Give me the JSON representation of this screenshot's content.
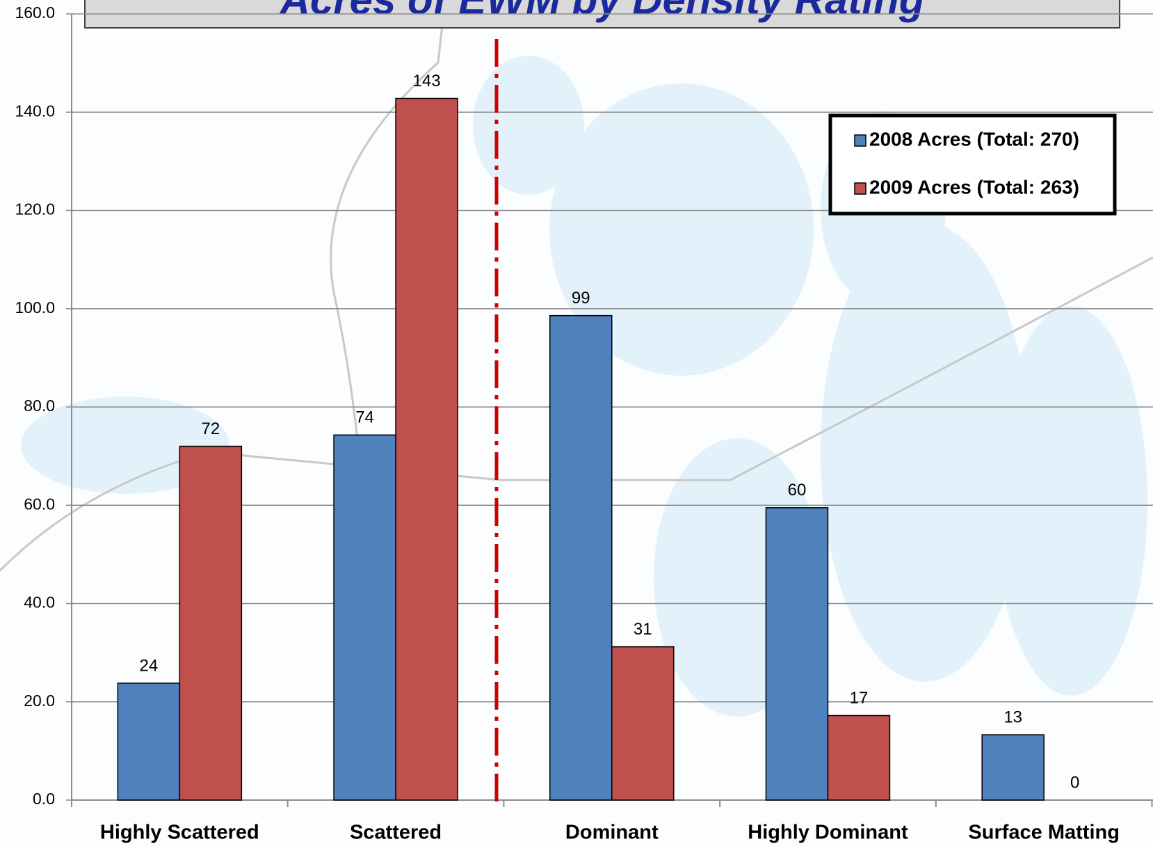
{
  "chart_data": {
    "type": "bar",
    "title": "Acres of EWM by Density Rating",
    "categories": [
      "Highly Scattered",
      "Scattered",
      "Dominant",
      "Highly Dominant",
      "Surface Matting"
    ],
    "series": [
      {
        "name": "2008 Acres (Total: 270)",
        "color": "#4f81bd",
        "values": [
          23.8,
          74.3,
          98.6,
          59.5,
          13.3
        ],
        "value_labels": [
          "24",
          "74",
          "99",
          "60",
          "13"
        ]
      },
      {
        "name": "2009 Acres (Total: 263)",
        "color": "#c0504d",
        "values": [
          72.0,
          142.8,
          31.2,
          17.2,
          0
        ],
        "value_labels": [
          "72",
          "143",
          "31",
          "17",
          "0"
        ]
      }
    ],
    "ylim": [
      0,
      160
    ],
    "yticks": [
      {
        "value": 0,
        "label": "0.0"
      },
      {
        "value": 20,
        "label": "20.0"
      },
      {
        "value": 40,
        "label": "40.0"
      },
      {
        "value": 60,
        "label": "60.0"
      },
      {
        "value": 80,
        "label": "80.0"
      },
      {
        "value": 100,
        "label": "100.0"
      },
      {
        "value": 120,
        "label": "120.0"
      },
      {
        "value": 140,
        "label": "140.0"
      },
      {
        "value": 160,
        "label": "160.0"
      }
    ],
    "grid": true,
    "legend": "upper right"
  }
}
